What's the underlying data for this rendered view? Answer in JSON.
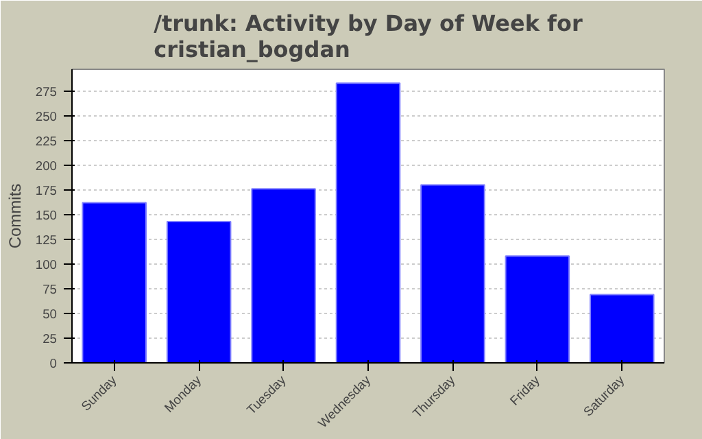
{
  "chart_data": {
    "type": "bar",
    "title": "/trunk: Activity by Day of Week for cristian_bogdan",
    "ylabel": "Commits",
    "categories": [
      "Sunday",
      "Monday",
      "Tuesday",
      "Wednesday",
      "Thursday",
      "Friday",
      "Saturday"
    ],
    "values": [
      162,
      143,
      176,
      283,
      180,
      108,
      69
    ],
    "color": "#0000ff",
    "ylim": [
      0,
      297
    ],
    "yticks": [
      0,
      25,
      50,
      75,
      100,
      125,
      150,
      175,
      200,
      225,
      250,
      275
    ],
    "grid": "y"
  }
}
